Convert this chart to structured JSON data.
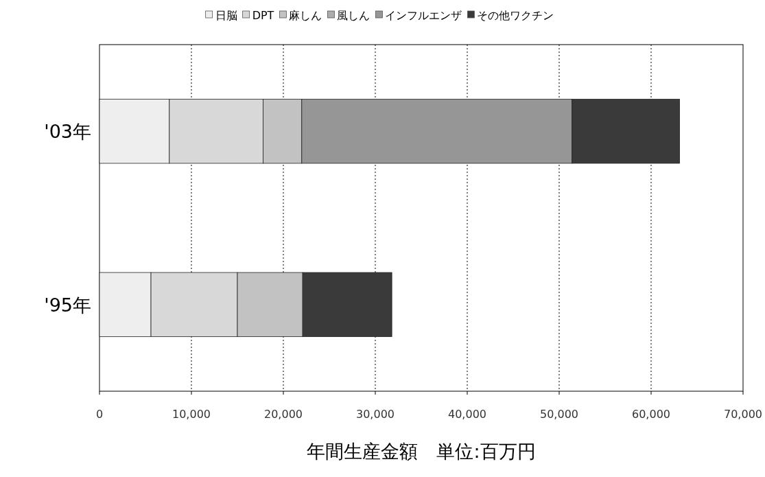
{
  "chart_data": {
    "type": "bar",
    "orientation": "horizontal",
    "stacked": true,
    "xlabel": "年間生産金額　単位:百万円",
    "categories": [
      "'03年",
      "'95年"
    ],
    "series": [
      {
        "name": "日脳",
        "color": "#eeeeee",
        "values": [
          7600,
          5600
        ]
      },
      {
        "name": "DPT",
        "color": "#d8d8d8",
        "values": [
          10200,
          9400
        ]
      },
      {
        "name": "麻しん",
        "color": "#c2c2c2",
        "values": [
          4200,
          7100
        ]
      },
      {
        "name": "風しん",
        "color": "#acacac",
        "values": [
          0,
          0
        ]
      },
      {
        "name": "インフルエンザ",
        "color": "#969696",
        "values": [
          29400,
          0
        ]
      },
      {
        "name": "その他ワクチン",
        "color": "#3a3a3a",
        "values": [
          11700,
          9700
        ]
      }
    ],
    "xlim": [
      0,
      70000
    ],
    "xticks": [
      {
        "value": 0,
        "label": "0"
      },
      {
        "value": 10000,
        "label": "10,000"
      },
      {
        "value": 20000,
        "label": "20,000"
      },
      {
        "value": 30000,
        "label": "30,000"
      },
      {
        "value": 40000,
        "label": "40,000"
      },
      {
        "value": 50000,
        "label": "50,000"
      },
      {
        "value": 60000,
        "label": "60,000"
      },
      {
        "value": 70000,
        "label": "70,000"
      }
    ],
    "grid": "x",
    "legend": "top"
  }
}
